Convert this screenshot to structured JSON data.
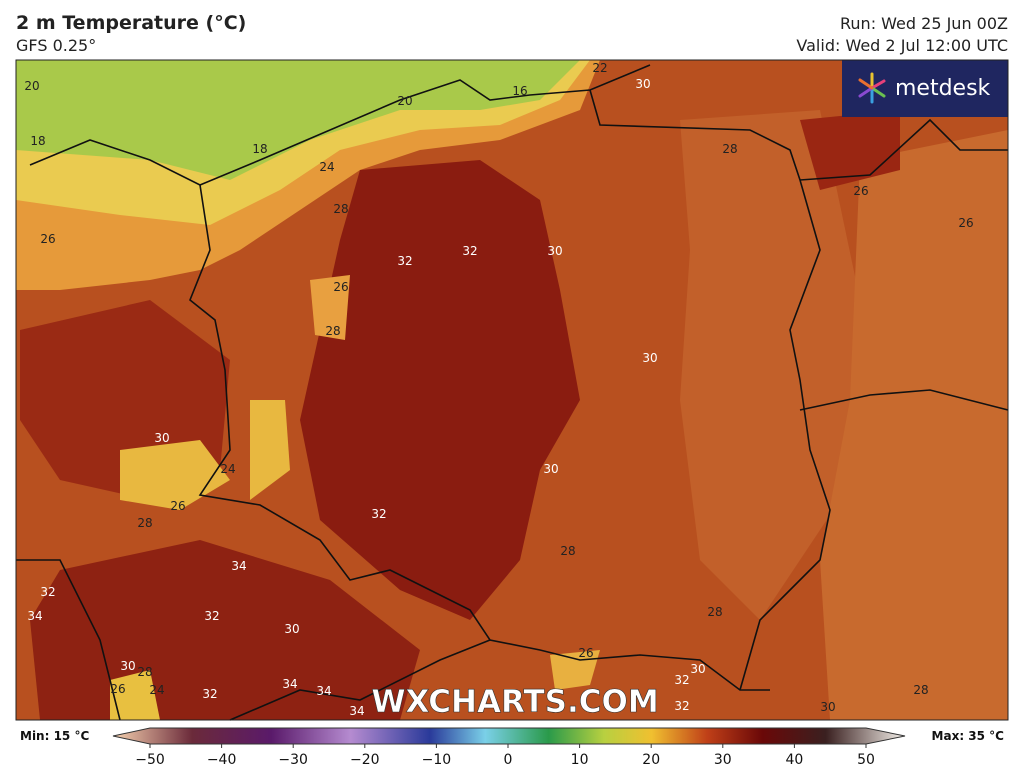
{
  "header": {
    "title": "2 m Temperature (°C)",
    "subtitle": "GFS 0.25°",
    "run": "Run: Wed 25 Jun 00Z",
    "valid": "Valid: Wed 2 Jul 12:00 UTC"
  },
  "logo": "metdesk",
  "watermark": "WXCHARTS.COM",
  "colorbar": {
    "min_label": "Min: 15 °C",
    "max_label": "Max: 35 °C",
    "ticks": [
      {
        "value": -50,
        "label": "−50"
      },
      {
        "value": -40,
        "label": "−40"
      },
      {
        "value": -30,
        "label": "−30"
      },
      {
        "value": -20,
        "label": "−20"
      },
      {
        "value": -10,
        "label": "−10"
      },
      0,
      10,
      20,
      30,
      40,
      50
    ]
  },
  "contour_labels": [
    20,
    16,
    22,
    30,
    18,
    18,
    20,
    24,
    28,
    26,
    28,
    26,
    32,
    32,
    30,
    26,
    28,
    30,
    30,
    24,
    26,
    28,
    30,
    32,
    28,
    34,
    32,
    34,
    32,
    30,
    28,
    30,
    32,
    34,
    34,
    26,
    28,
    24,
    30,
    32,
    34,
    26,
    26,
    28,
    30,
    32
  ]
}
